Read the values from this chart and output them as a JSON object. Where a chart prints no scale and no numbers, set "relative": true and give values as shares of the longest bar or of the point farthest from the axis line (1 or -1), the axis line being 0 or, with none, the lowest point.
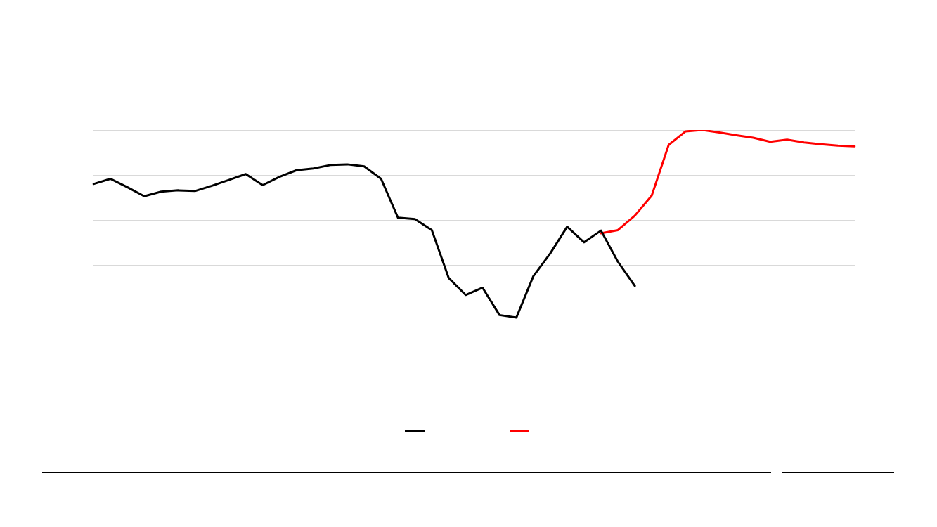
{
  "chart_data": {
    "type": "line",
    "relative": true,
    "grid": "y",
    "marker": "none",
    "line_style": "solid",
    "categories": [
      null,
      null,
      null,
      null,
      null,
      null,
      null,
      null,
      null,
      null,
      null,
      null,
      null,
      null,
      null,
      null,
      null,
      null,
      null,
      null,
      null,
      null,
      null,
      null,
      null,
      null,
      null,
      null,
      null,
      null,
      null,
      null,
      null,
      null,
      null,
      null,
      null,
      null,
      null,
      null,
      null,
      null,
      null,
      null,
      null,
      null
    ],
    "series": [
      {
        "color": "#000000",
        "values": [
          0.761,
          0.784,
          0.747,
          0.707,
          0.727,
          0.733,
          0.73,
          0.753,
          0.779,
          0.805,
          0.756,
          0.793,
          0.822,
          0.83,
          0.845,
          0.848,
          0.839,
          0.784,
          0.612,
          0.606,
          0.557,
          0.345,
          0.27,
          0.302,
          0.181,
          0.17,
          0.353,
          0.454,
          0.572,
          0.503,
          0.555,
          0.417,
          0.31,
          null,
          null,
          null,
          null,
          null,
          null,
          null,
          null,
          null,
          null,
          null,
          null,
          null
        ]
      },
      {
        "color": "#ff0000",
        "values": [
          null,
          null,
          null,
          null,
          null,
          null,
          null,
          null,
          null,
          null,
          null,
          null,
          null,
          null,
          null,
          null,
          null,
          null,
          null,
          null,
          null,
          null,
          null,
          null,
          null,
          null,
          null,
          null,
          null,
          null,
          0.543,
          0.557,
          0.621,
          0.71,
          0.934,
          0.994,
          1,
          0.989,
          0.977,
          0.966,
          0.948,
          0.957,
          0.945,
          0.937,
          0.931,
          0.928
        ]
      }
    ]
  }
}
